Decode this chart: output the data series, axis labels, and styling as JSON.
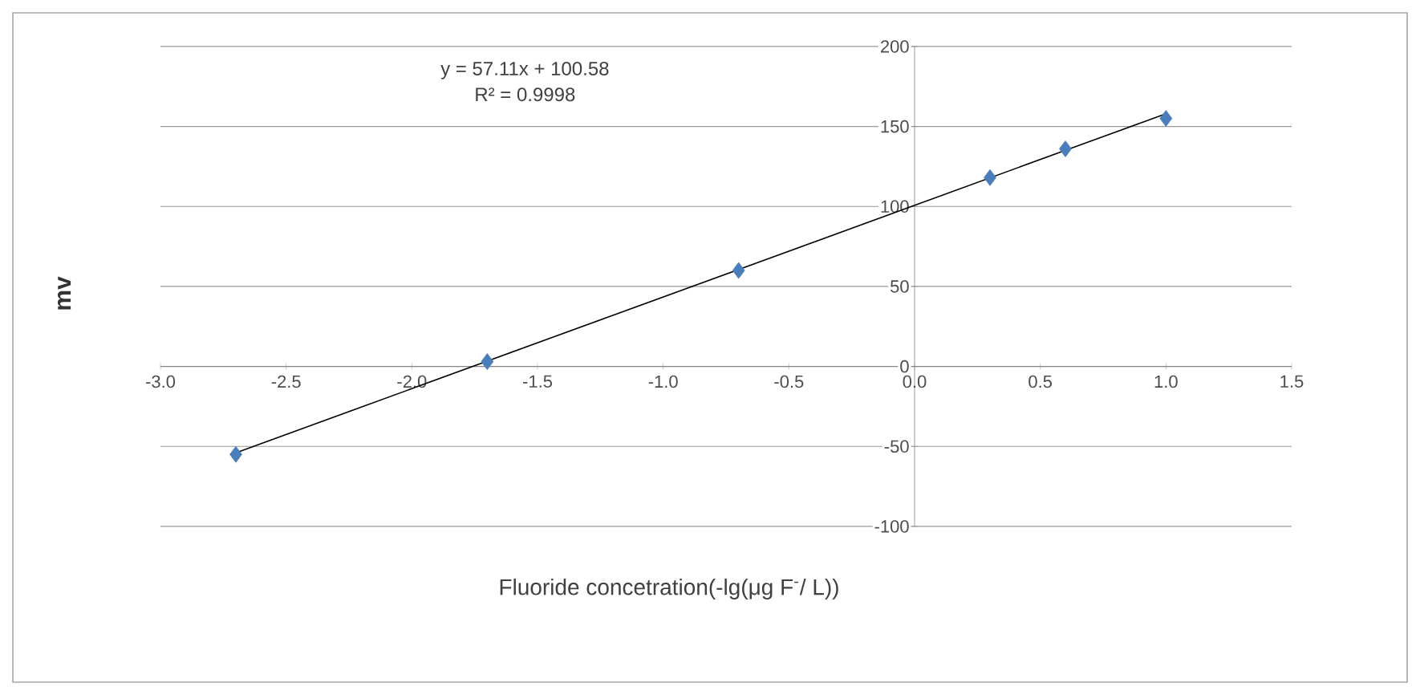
{
  "chart_data": {
    "type": "scatter",
    "xlabel": "Fluoride concetration(-lg(μg F$^{-}$/ L))",
    "ylabel": "mv",
    "annotations": [
      "y = 57.11x + 100.58",
      "R² = 0.9998"
    ],
    "series": [
      {
        "color": "#4a7ebb",
        "marker": "diamond",
        "x": [
          -2.7,
          -1.7,
          -0.7,
          0.3,
          0.6,
          1.0
        ],
        "values": [
          -55,
          3,
          60,
          118,
          136,
          155
        ]
      },
      {
        "type": "line",
        "color": "#000000",
        "marker": "none",
        "x": [
          -2.7,
          1.0
        ],
        "values": [
          -54,
          158
        ]
      }
    ],
    "xlim": [
      -3,
      1.5
    ],
    "ylim": [
      -100,
      200
    ],
    "xticks": [
      {
        "value": -3,
        "label": "-3.0"
      },
      {
        "value": -2.5,
        "label": "-2.5"
      },
      {
        "value": -2,
        "label": "-2.0"
      },
      {
        "value": -1.5,
        "label": "-1.5"
      },
      {
        "value": -1,
        "label": "-1.0"
      },
      {
        "value": -0.5,
        "label": "-0.5"
      },
      {
        "value": 0,
        "label": "0.0"
      },
      {
        "value": 0.5,
        "label": "0.5"
      },
      {
        "value": 1,
        "label": "1.0"
      },
      {
        "value": 1.5,
        "label": "1.5"
      }
    ],
    "yticks": [
      -100,
      -50,
      0,
      50,
      100,
      150,
      200
    ],
    "grid": "y"
  }
}
